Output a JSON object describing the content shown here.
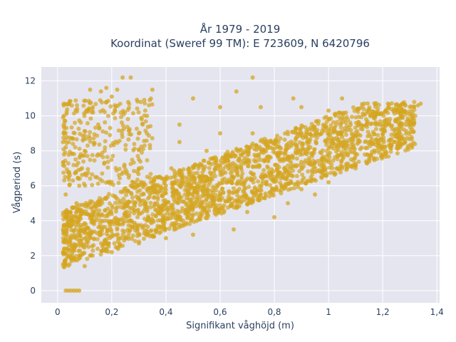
{
  "chart_data": {
    "type": "scatter",
    "title_line1": "År 1979 - 2019",
    "title_line2": "Koordinat (Sweref 99 TM): E 723609, N 6420796",
    "xlabel": "Signifikant våghöjd (m)",
    "ylabel": "Vågperiod (s)",
    "xlim": [
      -0.06,
      1.41
    ],
    "ylim": [
      -0.7,
      12.8
    ],
    "xticks": [
      0,
      0.2,
      0.4,
      0.6,
      0.8,
      1,
      1.2,
      1.4
    ],
    "xtick_labels": [
      "0",
      "0,2",
      "0,4",
      "0,6",
      "0,8",
      "1",
      "1,2",
      "1,4"
    ],
    "yticks": [
      0,
      2,
      4,
      6,
      8,
      10,
      12
    ],
    "ytick_labels": [
      "0",
      "2",
      "4",
      "6",
      "8",
      "10",
      "12"
    ],
    "grid": true,
    "marker_color": "#d4a520",
    "plot_bg": "#e5e5f0",
    "series": [
      {
        "values_description": "dense cloud of wave height vs. wave period samples",
        "points": [
          [
            0.03,
            0.0
          ],
          [
            0.04,
            0.0
          ],
          [
            0.05,
            0.0
          ],
          [
            0.06,
            0.0
          ],
          [
            0.07,
            0.0
          ],
          [
            0.08,
            0.0
          ],
          [
            0.02,
            1.5
          ],
          [
            0.02,
            2.2
          ],
          [
            0.02,
            3.5
          ],
          [
            0.03,
            4.2
          ],
          [
            0.03,
            5.5
          ],
          [
            0.04,
            6.5
          ],
          [
            0.02,
            8.5
          ],
          [
            0.03,
            8.2
          ],
          [
            0.05,
            1.8
          ],
          [
            0.06,
            2.5
          ],
          [
            0.06,
            4.0
          ],
          [
            0.07,
            5.0
          ],
          [
            0.08,
            6.0
          ],
          [
            0.09,
            7.0
          ],
          [
            0.1,
            8.0
          ],
          [
            0.1,
            1.4
          ],
          [
            0.12,
            2.0
          ],
          [
            0.12,
            3.0
          ],
          [
            0.13,
            4.5
          ],
          [
            0.14,
            6.5
          ],
          [
            0.15,
            7.8
          ],
          [
            0.15,
            9.5
          ],
          [
            0.13,
            10.5
          ],
          [
            0.12,
            11.5
          ],
          [
            0.16,
            11.4
          ],
          [
            0.18,
            11.6
          ],
          [
            0.2,
            11.1
          ],
          [
            0.22,
            11.5
          ],
          [
            0.24,
            12.2
          ],
          [
            0.27,
            12.2
          ],
          [
            0.2,
            2.2
          ],
          [
            0.22,
            3.5
          ],
          [
            0.25,
            4.8
          ],
          [
            0.27,
            6.0
          ],
          [
            0.3,
            7.0
          ],
          [
            0.3,
            9.0
          ],
          [
            0.33,
            10.0
          ],
          [
            0.35,
            11.5
          ],
          [
            0.3,
            2.7
          ],
          [
            0.33,
            4.0
          ],
          [
            0.36,
            5.0
          ],
          [
            0.4,
            6.0
          ],
          [
            0.42,
            7.0
          ],
          [
            0.45,
            8.5
          ],
          [
            0.45,
            9.5
          ],
          [
            0.5,
            11.0
          ],
          [
            0.4,
            3.0
          ],
          [
            0.45,
            4.2
          ],
          [
            0.5,
            5.5
          ],
          [
            0.55,
            6.5
          ],
          [
            0.55,
            8.0
          ],
          [
            0.6,
            9.0
          ],
          [
            0.6,
            10.5
          ],
          [
            0.66,
            11.4
          ],
          [
            0.5,
            3.2
          ],
          [
            0.55,
            4.5
          ],
          [
            0.6,
            5.5
          ],
          [
            0.65,
            6.5
          ],
          [
            0.7,
            7.5
          ],
          [
            0.72,
            9.0
          ],
          [
            0.72,
            12.2
          ],
          [
            0.75,
            10.5
          ],
          [
            0.65,
            3.5
          ],
          [
            0.7,
            4.5
          ],
          [
            0.75,
            5.5
          ],
          [
            0.8,
            6.5
          ],
          [
            0.85,
            7.5
          ],
          [
            0.88,
            9.0
          ],
          [
            0.9,
            10.5
          ],
          [
            0.87,
            11.0
          ],
          [
            0.8,
            4.2
          ],
          [
            0.85,
            5.0
          ],
          [
            0.9,
            5.8
          ],
          [
            0.95,
            6.8
          ],
          [
            1.0,
            7.8
          ],
          [
            1.05,
            8.8
          ],
          [
            1.0,
            10.3
          ],
          [
            1.05,
            11.0
          ],
          [
            0.95,
            5.5
          ],
          [
            1.0,
            6.2
          ],
          [
            1.05,
            7.0
          ],
          [
            1.1,
            7.8
          ],
          [
            1.15,
            8.5
          ],
          [
            1.2,
            9.2
          ],
          [
            1.25,
            9.8
          ],
          [
            1.28,
            10.3
          ],
          [
            1.1,
            7.0
          ],
          [
            1.15,
            7.5
          ],
          [
            1.2,
            8.2
          ],
          [
            1.25,
            8.8
          ],
          [
            1.3,
            9.5
          ],
          [
            1.32,
            10.0
          ],
          [
            1.34,
            10.7
          ],
          [
            1.33,
            10.6
          ]
        ]
      }
    ]
  }
}
